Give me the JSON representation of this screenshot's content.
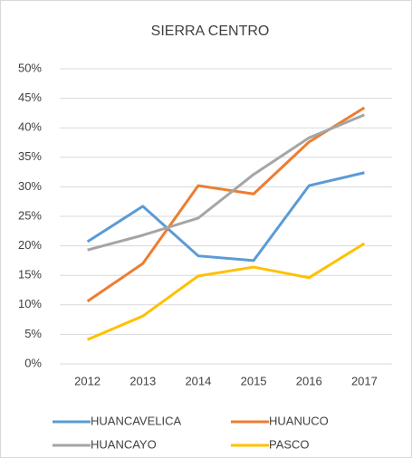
{
  "chart_data": {
    "type": "line",
    "title": "SIERRA CENTRO",
    "categories": [
      "2012",
      "2013",
      "2014",
      "2015",
      "2016",
      "2017"
    ],
    "series": [
      {
        "name": "HUANCAVELICA",
        "color": "#5b9bd5",
        "values": [
          20.7,
          26.7,
          18.3,
          17.5,
          30.2,
          32.4
        ]
      },
      {
        "name": "HUANUCO",
        "color": "#ed7d31",
        "values": [
          10.6,
          17.0,
          30.2,
          28.8,
          37.6,
          43.4
        ]
      },
      {
        "name": "HUANCAYO",
        "color": "#a5a5a5",
        "values": [
          19.3,
          21.8,
          24.7,
          32.1,
          38.3,
          42.2
        ]
      },
      {
        "name": "PASCO",
        "color": "#ffc000",
        "values": [
          4.1,
          8.1,
          14.9,
          16.4,
          14.6,
          20.4
        ]
      }
    ],
    "ylim": [
      0,
      50
    ],
    "yticks": [
      {
        "value": 0,
        "label": "0%"
      },
      {
        "value": 5,
        "label": "5%"
      },
      {
        "value": 10,
        "label": "10%"
      },
      {
        "value": 15,
        "label": "15%"
      },
      {
        "value": 20,
        "label": "20%"
      },
      {
        "value": 25,
        "label": "25%"
      },
      {
        "value": 30,
        "label": "30%"
      },
      {
        "value": 35,
        "label": "35%"
      },
      {
        "value": 40,
        "label": "40%"
      },
      {
        "value": 45,
        "label": "45%"
      },
      {
        "value": 50,
        "label": "50%"
      }
    ],
    "grid": true
  }
}
